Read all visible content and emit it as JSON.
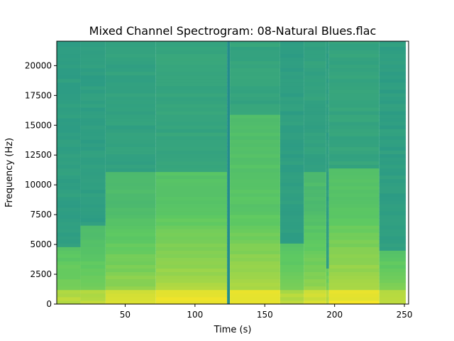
{
  "chart_data": {
    "type": "heatmap",
    "title": "Mixed Channel Spectrogram: 08-Natural Blues.flac",
    "xlabel": "Time (s)",
    "ylabel": "Frequency (Hz)",
    "xlim": [
      1,
      253
    ],
    "ylim": [
      0,
      22050
    ],
    "x_ticks": [
      50,
      100,
      150,
      200,
      250
    ],
    "y_ticks": [
      0,
      2500,
      5000,
      7500,
      10000,
      12500,
      15000,
      17500,
      20000
    ],
    "x_tick_labels": [
      "50",
      "100",
      "150",
      "200",
      "250"
    ],
    "y_tick_labels": [
      "0",
      "2500",
      "5000",
      "7500",
      "10000",
      "12500",
      "15000",
      "17500",
      "20000"
    ],
    "colormap": "viridis",
    "grid": false,
    "segments": [
      {
        "t_start": 1,
        "t_end": 18,
        "cutoff_hz": 4800,
        "energy": "low"
      },
      {
        "t_start": 18,
        "t_end": 36,
        "cutoff_hz": 6500,
        "energy": "low"
      },
      {
        "t_start": 36,
        "t_end": 72,
        "cutoff_hz": 11000,
        "energy": "medium"
      },
      {
        "t_start": 72,
        "t_end": 123,
        "cutoff_hz": 11000,
        "energy": "high"
      },
      {
        "t_start": 123,
        "t_end": 125,
        "cutoff_hz": 0,
        "energy": "silence"
      },
      {
        "t_start": 125,
        "t_end": 161,
        "cutoff_hz": 16000,
        "energy": "high"
      },
      {
        "t_start": 161,
        "t_end": 178,
        "cutoff_hz": 5000,
        "energy": "low"
      },
      {
        "t_start": 178,
        "t_end": 194,
        "cutoff_hz": 11000,
        "energy": "medium"
      },
      {
        "t_start": 194,
        "t_end": 196,
        "cutoff_hz": 3000,
        "energy": "low"
      },
      {
        "t_start": 196,
        "t_end": 232,
        "cutoff_hz": 11500,
        "energy": "high"
      },
      {
        "t_start": 232,
        "t_end": 251,
        "cutoff_hz": 4600,
        "energy": "low"
      }
    ]
  }
}
